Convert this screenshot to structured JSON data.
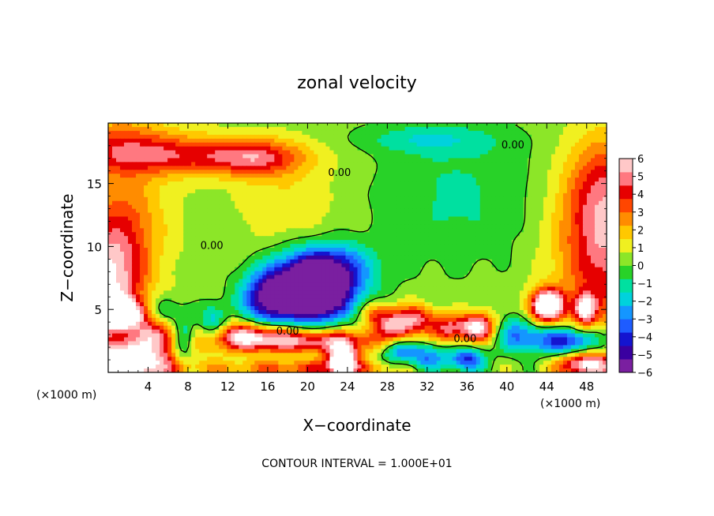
{
  "chart_data": {
    "type": "heatmap",
    "title": "zonal velocity",
    "xlabel": "X−coordinate",
    "ylabel": "Z−coordinate",
    "x_unit_left": "(×1000 m)",
    "x_unit_right": "(×1000 m)",
    "footnote": "CONTOUR INTERVAL = 1.000E+01",
    "xlim": [
      0,
      50
    ],
    "ylim": [
      0,
      19.8
    ],
    "x_ticks": [
      4,
      8,
      12,
      16,
      20,
      24,
      28,
      32,
      36,
      40,
      44,
      48
    ],
    "x_tick_labels": [
      "4",
      "8",
      "12",
      "16",
      "20",
      "24",
      "28",
      "32",
      "36",
      "40",
      "44",
      "48"
    ],
    "y_ticks": [
      5,
      10,
      15
    ],
    "y_tick_labels": [
      "5",
      "10",
      "15"
    ],
    "colorbar": {
      "min": -6,
      "max": 6,
      "tick_values": [
        6,
        5,
        4,
        3,
        2,
        1,
        0,
        -1,
        -2,
        -3,
        -4,
        -5,
        -6
      ],
      "tick_labels": [
        "6",
        "5",
        "4",
        "3",
        "2",
        "1",
        "0",
        "−1",
        "−2",
        "−3",
        "−4",
        "−5",
        "−6"
      ],
      "colors": [
        "#7a1fa0",
        "#3a00a0",
        "#1414d0",
        "#1e5cff",
        "#1496ff",
        "#00d2dc",
        "#00e0a0",
        "#28d228",
        "#8ce628",
        "#f0f020",
        "#ffc800",
        "#ff8c00",
        "#ff4600",
        "#e60000",
        "#ff7880",
        "#ffc8c8"
      ]
    },
    "contour_labels": [
      {
        "text": "0.00",
        "x": 10.4,
        "z": 9.8
      },
      {
        "text": "0.00",
        "x": 23.2,
        "z": 15.6
      },
      {
        "text": "0.00",
        "x": 40.6,
        "z": 17.8
      },
      {
        "text": "0.00",
        "x": 18.0,
        "z": 3.0
      },
      {
        "text": "0.00",
        "x": 35.8,
        "z": 2.4
      }
    ],
    "features": [
      {
        "x": 0.0,
        "z": 7.0,
        "amp": 5.0,
        "sx": 2.5,
        "sz": 3.0
      },
      {
        "x": 1.0,
        "z": 4.6,
        "amp": 7.5,
        "sx": 1.8,
        "sz": 0.8
      },
      {
        "x": 1.5,
        "z": 12.0,
        "amp": 2.5,
        "sx": 3.0,
        "sz": 3.5
      },
      {
        "x": 50.0,
        "z": 10.0,
        "amp": 4.5,
        "sx": 3.5,
        "sz": 4.5
      },
      {
        "x": 49.5,
        "z": 15.0,
        "amp": 2.0,
        "sx": 2.5,
        "sz": 3.0
      },
      {
        "x": 44.0,
        "z": 5.3,
        "amp": 8.0,
        "sx": 1.2,
        "sz": 0.9
      },
      {
        "x": 47.8,
        "z": 5.0,
        "amp": 5.0,
        "sx": 0.8,
        "sz": 0.9
      },
      {
        "x": 37.0,
        "z": 3.6,
        "amp": 6.0,
        "sx": 1.3,
        "sz": 0.8
      },
      {
        "x": 34.0,
        "z": 3.5,
        "amp": 4.0,
        "sx": 1.2,
        "sz": 0.8
      },
      {
        "x": 31.0,
        "z": 4.3,
        "amp": 4.0,
        "sx": 1.2,
        "sz": 0.8
      },
      {
        "x": 29.0,
        "z": 3.5,
        "amp": 4.5,
        "sx": 1.2,
        "sz": 0.9
      },
      {
        "x": 27.0,
        "z": 4.5,
        "amp": 3.5,
        "sx": 1.2,
        "sz": 0.8
      },
      {
        "x": 20.0,
        "z": 2.5,
        "amp": 5.0,
        "sx": 6.0,
        "sz": 0.7
      },
      {
        "x": 14.0,
        "z": 3.0,
        "amp": 4.0,
        "sx": 2.5,
        "sz": 0.8
      },
      {
        "x": 5.0,
        "z": 3.0,
        "amp": 3.5,
        "sx": 1.5,
        "sz": 0.8
      },
      {
        "x": 2.0,
        "z": 0.8,
        "amp": 7.5,
        "sx": 3.5,
        "sz": 1.2
      },
      {
        "x": 20.0,
        "z": 0.3,
        "amp": 3.0,
        "sx": 7.0,
        "sz": 0.5
      },
      {
        "x": 23.5,
        "z": 1.0,
        "amp": 8.0,
        "sx": 1.0,
        "sz": 0.8
      },
      {
        "x": 48.0,
        "z": 0.6,
        "amp": 6.0,
        "sx": 2.0,
        "sz": 0.7
      },
      {
        "x": 8.0,
        "z": 17.2,
        "amp": 3.5,
        "sx": 7.0,
        "sz": 1.1
      },
      {
        "x": 15.0,
        "z": 17.0,
        "amp": 2.5,
        "sx": 3.0,
        "sz": 1.0
      },
      {
        "x": 1.0,
        "z": 18.5,
        "amp": 2.0,
        "sx": 4.0,
        "sz": 1.5
      },
      {
        "x": 18.0,
        "z": 13.5,
        "amp": 1.0,
        "sx": 3.5,
        "sz": 2.5
      },
      {
        "x": 35.0,
        "z": 14.0,
        "amp": -1.3,
        "sx": 6.0,
        "sz": 4.0
      },
      {
        "x": 32.0,
        "z": 18.5,
        "amp": -1.5,
        "sx": 5.0,
        "sz": 0.8
      },
      {
        "x": 20.0,
        "z": 6.3,
        "amp": -10.0,
        "sx": 3.2,
        "sz": 1.6
      },
      {
        "x": 22.0,
        "z": 8.5,
        "amp": -4.0,
        "sx": 3.0,
        "sz": 1.3
      },
      {
        "x": 15.5,
        "z": 5.5,
        "amp": -3.0,
        "sx": 1.5,
        "sz": 1.5
      },
      {
        "x": 29.0,
        "z": 2.0,
        "amp": -4.0,
        "sx": 1.2,
        "sz": 0.8
      },
      {
        "x": 32.0,
        "z": 1.2,
        "amp": -3.5,
        "sx": 1.5,
        "sz": 0.9
      },
      {
        "x": 36.0,
        "z": 1.0,
        "amp": -4.5,
        "sx": 1.2,
        "sz": 0.7
      },
      {
        "x": 46.0,
        "z": 2.5,
        "amp": -5.0,
        "sx": 2.5,
        "sz": 0.8
      },
      {
        "x": 41.0,
        "z": 3.0,
        "amp": -3.0,
        "sx": 1.5,
        "sz": 1.0
      },
      {
        "x": 7.5,
        "z": 2.5,
        "amp": -3.5,
        "sx": 0.8,
        "sz": 1.2
      },
      {
        "x": 10.5,
        "z": 4.0,
        "amp": -2.5,
        "sx": 1.0,
        "sz": 1.0
      },
      {
        "x": 5.5,
        "z": 5.0,
        "amp": -2.0,
        "sx": 1.0,
        "sz": 0.8
      }
    ]
  }
}
